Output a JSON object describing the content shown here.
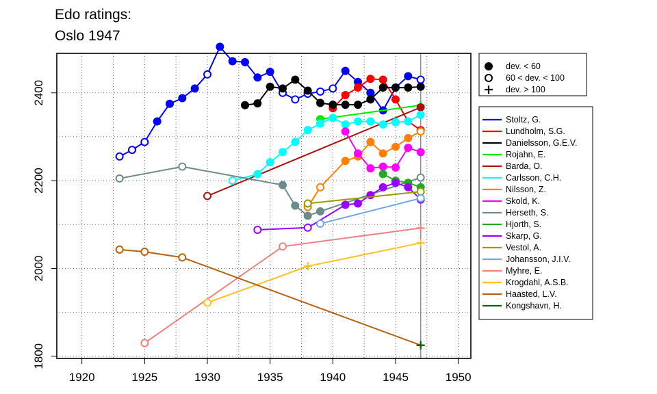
{
  "chart_data": {
    "type": "line",
    "title_lines": [
      "Edo ratings:",
      "Oslo 1947"
    ],
    "xlabel": "",
    "ylabel": "",
    "xlim": [
      1918,
      1951
    ],
    "ylim": [
      1795,
      2490
    ],
    "x_ticks": [
      1920,
      1925,
      1930,
      1935,
      1940,
      1945,
      1950
    ],
    "y_ticks": [
      1800,
      2000,
      2200,
      2400
    ],
    "grid": true,
    "reference_line_x": 1947,
    "marker_legend": [
      {
        "marker": "filled",
        "label": "dev. < 60"
      },
      {
        "marker": "open",
        "label": "60 < dev. < 100"
      },
      {
        "marker": "plus",
        "label": "dev. > 100"
      }
    ],
    "series": [
      {
        "name": "Stoltz, G.",
        "color": "#0000ff",
        "points": [
          [
            1923,
            2255,
            "open"
          ],
          [
            1924,
            2270,
            "open"
          ],
          [
            1925,
            2288,
            "open"
          ],
          [
            1926,
            2335,
            "filled"
          ],
          [
            1927,
            2375,
            "filled"
          ],
          [
            1928,
            2388,
            "filled"
          ],
          [
            1929,
            2410,
            "filled"
          ],
          [
            1930,
            2442,
            "open"
          ],
          [
            1931,
            2505,
            "filled"
          ],
          [
            1932,
            2472,
            "filled"
          ],
          [
            1933,
            2470,
            "filled"
          ],
          [
            1934,
            2435,
            "filled"
          ],
          [
            1935,
            2448,
            "filled"
          ],
          [
            1936,
            2400,
            "open"
          ],
          [
            1937,
            2385,
            "open"
          ],
          [
            1938,
            2398,
            "open"
          ],
          [
            1939,
            2403,
            "open"
          ],
          [
            1940,
            2410,
            "open"
          ],
          [
            1941,
            2450,
            "filled"
          ],
          [
            1942,
            2425,
            "filled"
          ],
          [
            1943,
            2400,
            "filled"
          ],
          [
            1944,
            2360,
            "filled"
          ],
          [
            1945,
            2412,
            "filled"
          ],
          [
            1946,
            2438,
            "filled"
          ],
          [
            1947,
            2430,
            "open"
          ]
        ]
      },
      {
        "name": "Lundholm, S.G.",
        "color": "#ff0000",
        "points": [
          [
            1940,
            2365,
            "filled"
          ],
          [
            1941,
            2395,
            "filled"
          ],
          [
            1942,
            2412,
            "filled"
          ],
          [
            1943,
            2432,
            "filled"
          ],
          [
            1944,
            2430,
            "filled"
          ],
          [
            1945,
            2385,
            "filled"
          ],
          [
            1946,
            2335,
            "filled"
          ],
          [
            1947,
            2315,
            "open"
          ]
        ]
      },
      {
        "name": "Danielsson, G.E.V.",
        "color": "#000000",
        "points": [
          [
            1933,
            2372,
            "filled"
          ],
          [
            1934,
            2376,
            "filled"
          ],
          [
            1935,
            2414,
            "filled"
          ],
          [
            1936,
            2410,
            "filled"
          ],
          [
            1937,
            2430,
            "filled"
          ],
          [
            1938,
            2405,
            "filled"
          ],
          [
            1939,
            2377,
            "filled"
          ],
          [
            1940,
            2373,
            "filled"
          ],
          [
            1941,
            2373,
            "filled"
          ],
          [
            1942,
            2373,
            "filled"
          ],
          [
            1943,
            2385,
            "filled"
          ],
          [
            1944,
            2412,
            "filled"
          ],
          [
            1945,
            2412,
            "filled"
          ],
          [
            1946,
            2412,
            "filled"
          ],
          [
            1947,
            2414,
            "filled"
          ]
        ]
      },
      {
        "name": "Rojahn, E.",
        "color": "#00ee00",
        "points": [
          [
            1939,
            2340,
            "filled"
          ],
          [
            1947,
            2372,
            "plus"
          ]
        ]
      },
      {
        "name": "Barda, O.",
        "color": "#aa1111",
        "points": [
          [
            1930,
            2165,
            "open"
          ],
          [
            1947,
            2367,
            "filled"
          ]
        ]
      },
      {
        "name": "Carlsson, C.H.",
        "color": "#00ffff",
        "points": [
          [
            1932,
            2200,
            "open"
          ],
          [
            1934,
            2215,
            "filled"
          ],
          [
            1935,
            2242,
            "filled"
          ],
          [
            1936,
            2265,
            "filled"
          ],
          [
            1937,
            2288,
            "filled"
          ],
          [
            1938,
            2315,
            "filled"
          ],
          [
            1939,
            2330,
            "filled"
          ],
          [
            1940,
            2343,
            "filled"
          ],
          [
            1941,
            2328,
            "filled"
          ],
          [
            1942,
            2335,
            "filled"
          ],
          [
            1943,
            2335,
            "filled"
          ],
          [
            1944,
            2328,
            "filled"
          ],
          [
            1945,
            2333,
            "filled"
          ],
          [
            1946,
            2335,
            "filled"
          ],
          [
            1947,
            2350,
            "filled"
          ]
        ]
      },
      {
        "name": "Nilsson, Z.",
        "color": "#ff7f00",
        "points": [
          [
            1938,
            2140,
            "open"
          ],
          [
            1939,
            2185,
            "open"
          ],
          [
            1941,
            2245,
            "filled"
          ],
          [
            1942,
            2255,
            "filled"
          ],
          [
            1943,
            2288,
            "filled"
          ],
          [
            1944,
            2262,
            "filled"
          ],
          [
            1945,
            2277,
            "filled"
          ],
          [
            1946,
            2297,
            "filled"
          ],
          [
            1947,
            2312,
            "open"
          ]
        ]
      },
      {
        "name": "Skold, K.",
        "color": "#ff00ff",
        "points": [
          [
            1941,
            2312,
            "filled"
          ],
          [
            1942,
            2262,
            "filled"
          ],
          [
            1943,
            2228,
            "filled"
          ],
          [
            1944,
            2232,
            "filled"
          ],
          [
            1945,
            2230,
            "filled"
          ],
          [
            1946,
            2275,
            "filled"
          ],
          [
            1947,
            2265,
            "filled"
          ]
        ]
      },
      {
        "name": "Herseth, S.",
        "color": "#6e8b8b",
        "points": [
          [
            1923,
            2205,
            "open"
          ],
          [
            1928,
            2232,
            "open"
          ],
          [
            1936,
            2190,
            "filled"
          ],
          [
            1937,
            2143,
            "filled"
          ],
          [
            1938,
            2120,
            "filled"
          ],
          [
            1939,
            2130,
            "filled"
          ],
          [
            1947,
            2207,
            "open"
          ]
        ]
      },
      {
        "name": "Hjorth, S.",
        "color": "#22aa22",
        "points": [
          [
            1944,
            2215,
            "filled"
          ],
          [
            1945,
            2200,
            "filled"
          ],
          [
            1946,
            2195,
            "filled"
          ],
          [
            1947,
            2185,
            "filled"
          ]
        ]
      },
      {
        "name": "Skarp, G.",
        "color": "#9900ff",
        "points": [
          [
            1934,
            2088,
            "open"
          ],
          [
            1938,
            2093,
            "open"
          ],
          [
            1941,
            2145,
            "filled"
          ],
          [
            1942,
            2148,
            "filled"
          ],
          [
            1943,
            2167,
            "filled"
          ],
          [
            1944,
            2185,
            "filled"
          ],
          [
            1945,
            2195,
            "filled"
          ],
          [
            1946,
            2185,
            "filled"
          ],
          [
            1947,
            2157,
            "open"
          ]
        ]
      },
      {
        "name": "Vestol, A.",
        "color": "#999900",
        "points": [
          [
            1938,
            2148,
            "open"
          ],
          [
            1947,
            2175,
            "open"
          ]
        ]
      },
      {
        "name": "Johansson, J.I.V.",
        "color": "#6aa6e8",
        "points": [
          [
            1939,
            2102,
            "open"
          ],
          [
            1947,
            2160,
            "open"
          ]
        ]
      },
      {
        "name": "Myhre, E.",
        "color": "#f08080",
        "points": [
          [
            1925,
            1830,
            "open"
          ],
          [
            1936,
            2050,
            "open"
          ],
          [
            1947,
            2092,
            "plus"
          ]
        ]
      },
      {
        "name": "Krogdahl, A.S.B.",
        "color": "#ffc020",
        "points": [
          [
            1930,
            1922,
            "open"
          ],
          [
            1938,
            2005,
            "plus"
          ],
          [
            1947,
            2058,
            "plus"
          ]
        ]
      },
      {
        "name": "Haasted, L.V.",
        "color": "#b8600f",
        "points": [
          [
            1923,
            2043,
            "open"
          ],
          [
            1925,
            2038,
            "open"
          ],
          [
            1928,
            2025,
            "open"
          ],
          [
            1947,
            1825,
            "plus"
          ]
        ]
      },
      {
        "name": "Kongshavn, H.",
        "color": "#006400",
        "points": [
          [
            1947,
            1825,
            "plus"
          ]
        ]
      }
    ]
  }
}
